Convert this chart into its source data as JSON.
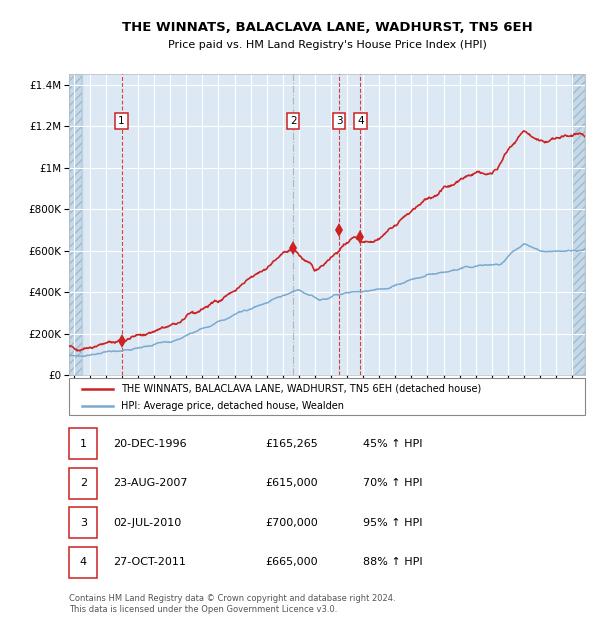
{
  "title": "THE WINNATS, BALACLAVA LANE, WADHURST, TN5 6EH",
  "subtitle": "Price paid vs. HM Land Registry's House Price Index (HPI)",
  "plot_bg_color": "#dce9f5",
  "hatch_color": "#b8cfe0",
  "ylim": [
    0,
    1450000
  ],
  "yticks": [
    0,
    200000,
    400000,
    600000,
    800000,
    1000000,
    1200000,
    1400000
  ],
  "ytick_labels": [
    "£0",
    "£200K",
    "£400K",
    "£600K",
    "£800K",
    "£1M",
    "£1.2M",
    "£1.4M"
  ],
  "xlim_start": 1993.7,
  "xlim_end": 2025.8,
  "hatch_left_end": 1994.5,
  "hatch_right_start": 2025.0,
  "sales": [
    {
      "date_num": 1996.97,
      "price": 165265,
      "label": "1"
    },
    {
      "date_num": 2007.64,
      "price": 615000,
      "label": "2"
    },
    {
      "date_num": 2010.5,
      "price": 700000,
      "label": "3"
    },
    {
      "date_num": 2011.82,
      "price": 665000,
      "label": "4"
    }
  ],
  "vlines": [
    {
      "x": 1996.97,
      "ls": "dashed",
      "color": "#cc2222",
      "alpha": 0.85
    },
    {
      "x": 2007.64,
      "ls": "dashdot",
      "color": "#aaaaaa",
      "alpha": 0.85
    },
    {
      "x": 2010.5,
      "ls": "dashed",
      "color": "#cc2222",
      "alpha": 0.85
    },
    {
      "x": 2011.82,
      "ls": "dashed",
      "color": "#cc2222",
      "alpha": 0.85
    }
  ],
  "num_labels": [
    {
      "x": 1996.97,
      "label": "1"
    },
    {
      "x": 2007.64,
      "label": "2"
    },
    {
      "x": 2010.5,
      "label": "3"
    },
    {
      "x": 2011.82,
      "label": "4"
    }
  ],
  "sale_dates_info": [
    {
      "num": 1,
      "date": "20-DEC-1996",
      "price": "£165,265",
      "pct": "45% ↑ HPI"
    },
    {
      "num": 2,
      "date": "23-AUG-2007",
      "price": "£615,000",
      "pct": "70% ↑ HPI"
    },
    {
      "num": 3,
      "date": "02-JUL-2010",
      "price": "£700,000",
      "pct": "95% ↑ HPI"
    },
    {
      "num": 4,
      "date": "27-OCT-2011",
      "price": "£665,000",
      "pct": "88% ↑ HPI"
    }
  ],
  "red_line_color": "#cc2222",
  "blue_line_color": "#7aaad0",
  "legend_line1": "THE WINNATS, BALACLAVA LANE, WADHURST, TN5 6EH (detached house)",
  "legend_line2": "HPI: Average price, detached house, Wealden",
  "footer": "Contains HM Land Registry data © Crown copyright and database right 2024.\nThis data is licensed under the Open Government Licence v3.0."
}
